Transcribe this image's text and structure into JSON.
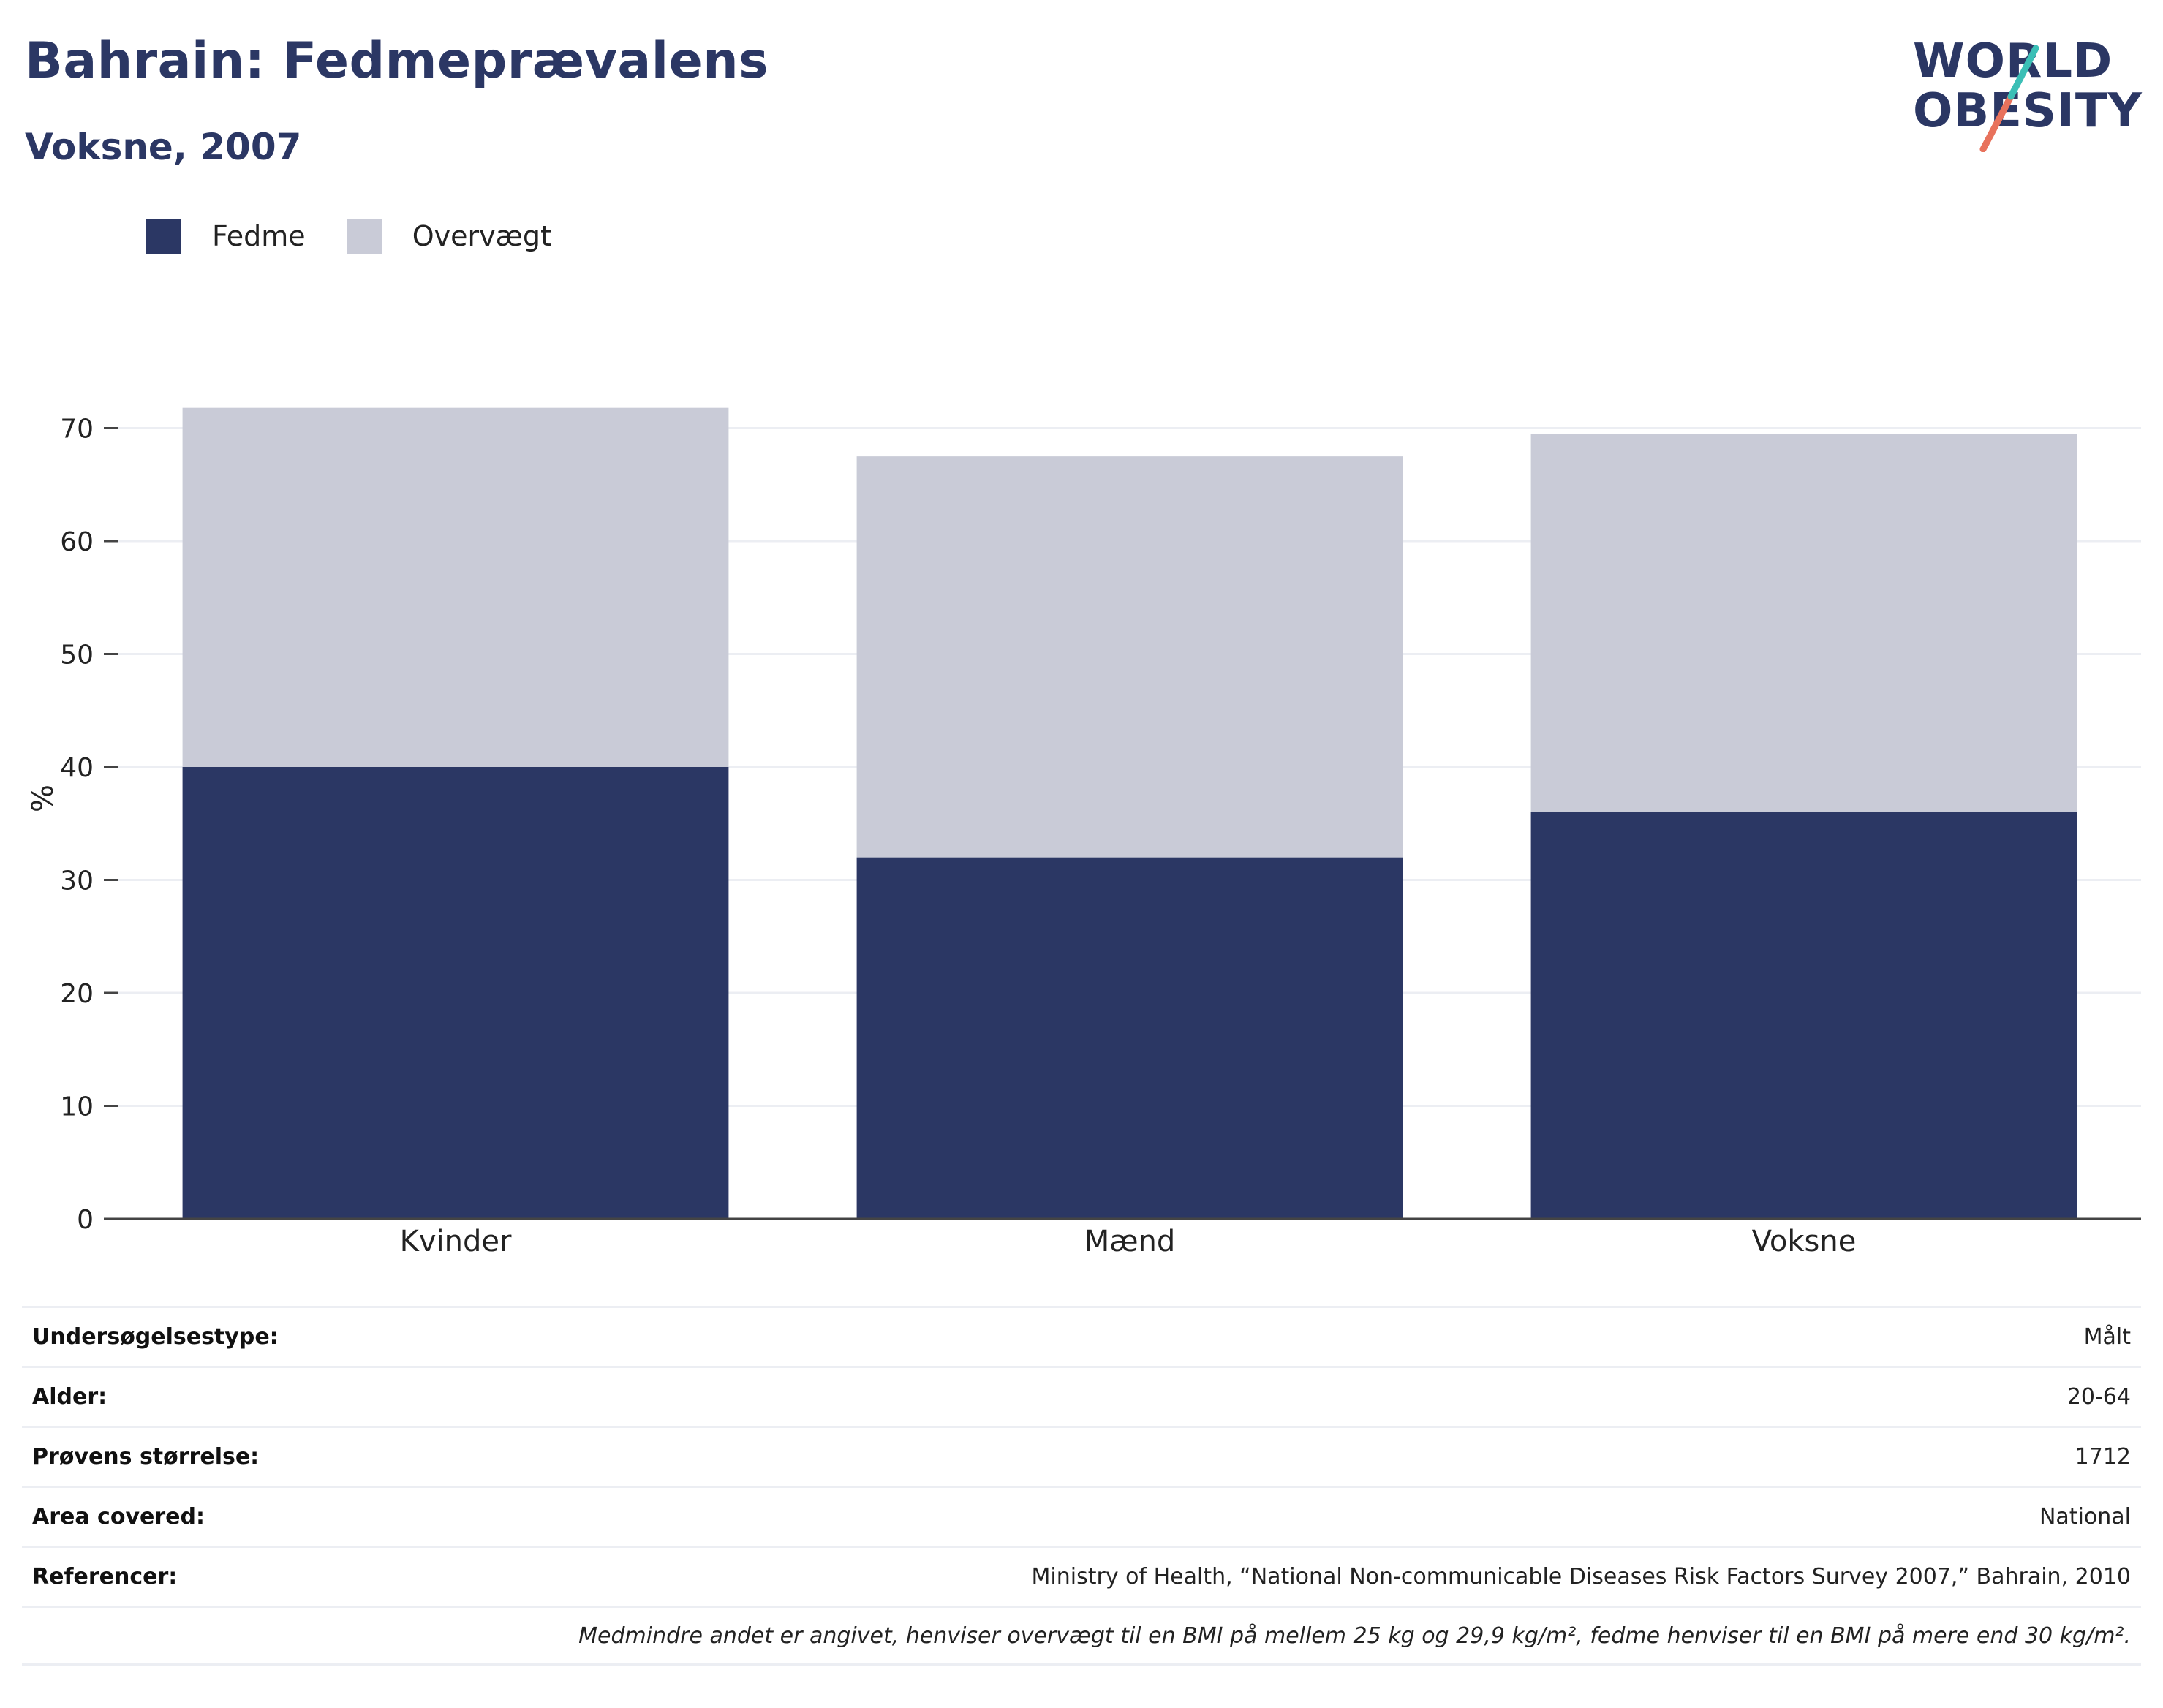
{
  "header": {
    "title": "Bahrain: Fedmeprævalens",
    "subtitle": "Voksne, 2007"
  },
  "logo": {
    "line1": "WORLD",
    "line2": "OBESITY",
    "accent_teal": "#3bbfb6",
    "accent_coral": "#e8725c"
  },
  "colors": {
    "obesity": "#2b3764",
    "overweight": "#c9cbd7",
    "text": "#222222"
  },
  "chart_data": {
    "type": "bar",
    "stacked": true,
    "categories": [
      "Kvinder",
      "Mænd",
      "Voksne"
    ],
    "series": [
      {
        "name": "Fedme",
        "values": [
          40.0,
          32.0,
          36.0
        ],
        "color": "#2b3764"
      },
      {
        "name": "Overvægt",
        "values": [
          31.8,
          35.5,
          33.5
        ],
        "color": "#c9cbd7"
      }
    ],
    "ylabel": "%",
    "ylim": [
      0,
      75
    ],
    "yticks": [
      0,
      10,
      20,
      30,
      40,
      50,
      60,
      70
    ],
    "grid": true,
    "legend": "top-left"
  },
  "meta": {
    "rows": [
      {
        "key": "Undersøgelsestype:",
        "value": "Målt"
      },
      {
        "key": "Alder:",
        "value": "20-64"
      },
      {
        "key": "Prøvens størrelse:",
        "value": "1712"
      },
      {
        "key": "Area covered:",
        "value": "National"
      },
      {
        "key": "Referencer:",
        "value": "Ministry of Health, “National Non-communicable Diseases Risk Factors Survey 2007,” Bahrain, 2010"
      }
    ],
    "note": "Medmindre andet er angivet, henviser overvægt til en BMI på mellem 25 kg og 29,9 kg/m², fedme henviser til en BMI på mere end 30 kg/m²."
  }
}
